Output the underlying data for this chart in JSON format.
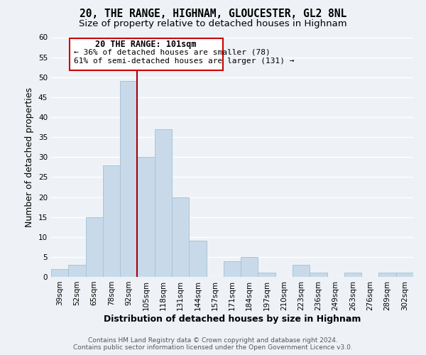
{
  "title": "20, THE RANGE, HIGHNAM, GLOUCESTER, GL2 8NL",
  "subtitle": "Size of property relative to detached houses in Highnam",
  "xlabel": "Distribution of detached houses by size in Highnam",
  "ylabel": "Number of detached properties",
  "bar_color": "#c8daea",
  "bar_edge_color": "#a8c4d8",
  "categories": [
    "39sqm",
    "52sqm",
    "65sqm",
    "78sqm",
    "92sqm",
    "105sqm",
    "118sqm",
    "131sqm",
    "144sqm",
    "157sqm",
    "171sqm",
    "184sqm",
    "197sqm",
    "210sqm",
    "223sqm",
    "236sqm",
    "249sqm",
    "263sqm",
    "276sqm",
    "289sqm",
    "302sqm"
  ],
  "values": [
    2,
    3,
    15,
    28,
    49,
    30,
    37,
    20,
    9,
    0,
    4,
    5,
    1,
    0,
    3,
    1,
    0,
    1,
    0,
    1,
    1
  ],
  "ylim": [
    0,
    60
  ],
  "yticks": [
    0,
    5,
    10,
    15,
    20,
    25,
    30,
    35,
    40,
    45,
    50,
    55,
    60
  ],
  "vline_x_index": 4,
  "vline_color": "#aa0000",
  "annotation_line1": "20 THE RANGE: 101sqm",
  "annotation_line2": "← 36% of detached houses are smaller (78)",
  "annotation_line3": "61% of semi-detached houses are larger (131) →",
  "footer_line1": "Contains HM Land Registry data © Crown copyright and database right 2024.",
  "footer_line2": "Contains public sector information licensed under the Open Government Licence v3.0.",
  "bg_color": "#eef2f6",
  "grid_color": "#ffffff",
  "title_fontsize": 10.5,
  "subtitle_fontsize": 9.5,
  "axis_label_fontsize": 9,
  "tick_fontsize": 7.5,
  "footer_fontsize": 6.5,
  "annotation_fontsize": 8.5
}
